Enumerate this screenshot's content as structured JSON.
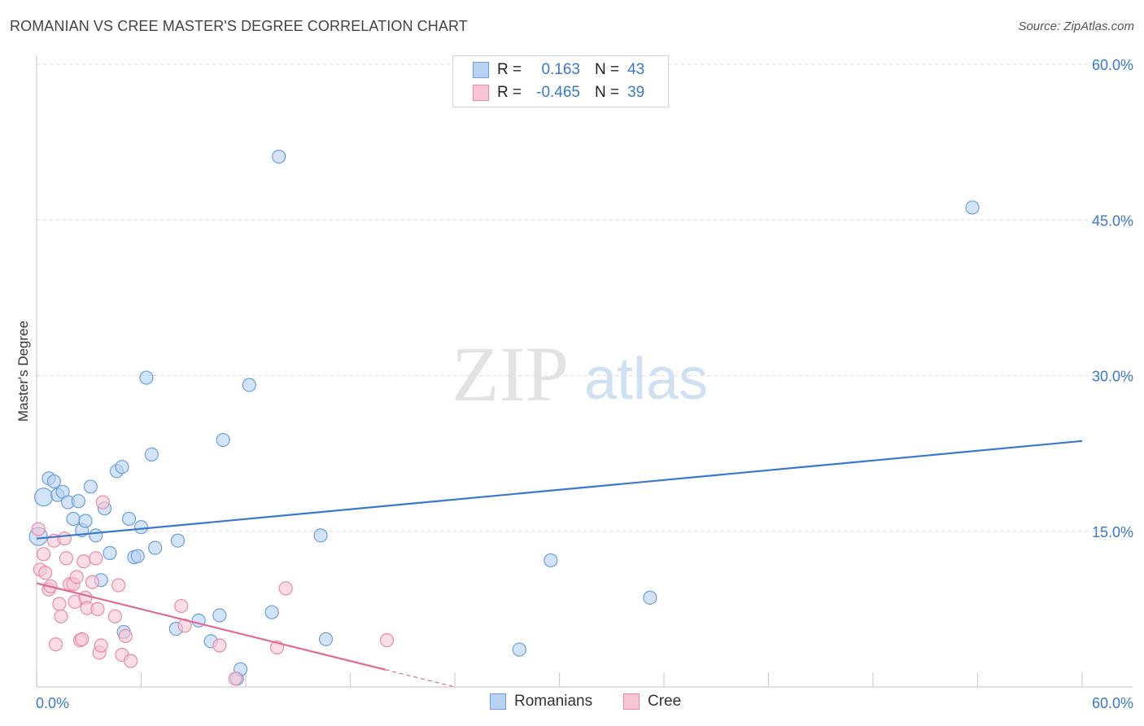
{
  "header": {
    "title": "ROMANIAN VS CREE MASTER'S DEGREE CORRELATION CHART",
    "source": "Source: ZipAtlas.com"
  },
  "watermark": {
    "part1": "ZIP",
    "part2": "atlas"
  },
  "legend": {
    "rows": [
      {
        "r_label": "R =",
        "r_value": "0.163",
        "n_label": "N =",
        "n_value": "43",
        "fill": "#b8d2f3",
        "stroke": "#6a9ee0"
      },
      {
        "r_label": "R =",
        "r_value": "-0.465",
        "n_label": "N =",
        "n_value": "39",
        "fill": "#f9c6d5",
        "stroke": "#e98aa8"
      }
    ]
  },
  "bottom_legend": {
    "items": [
      {
        "label": "Romanians",
        "fill": "#b8d2f3",
        "stroke": "#6a9ee0"
      },
      {
        "label": "Cree",
        "fill": "#f9c6d5",
        "stroke": "#e98aa8"
      }
    ]
  },
  "chart_data": {
    "type": "scatter",
    "title": "ROMANIAN VS CREE MASTER'S DEGREE CORRELATION CHART",
    "xlabel": "",
    "ylabel": "Master's Degree",
    "xlim": [
      0,
      60
    ],
    "ylim": [
      0,
      60
    ],
    "x_tick_labels": [
      "0.0%",
      "60.0%"
    ],
    "y_ticks": [
      {
        "value": 15,
        "label": "15.0%"
      },
      {
        "value": 30,
        "label": "30.0%"
      },
      {
        "value": 45,
        "label": "45.0%"
      },
      {
        "value": 60,
        "label": "60.0%"
      }
    ],
    "grid": true,
    "legend_position": "top-center",
    "colors": {
      "romanians": "#3a78d0",
      "cree": "#e06b94",
      "tick": "#3a78d0"
    },
    "series": [
      {
        "name": "Romanians",
        "fill": "#b8d2f3",
        "stroke": "#6a9ee0",
        "points": [
          {
            "x": 0.1,
            "y": 14.5,
            "big": true
          },
          {
            "x": 0.4,
            "y": 18.3,
            "big": true
          },
          {
            "x": 0.7,
            "y": 20.1
          },
          {
            "x": 1.0,
            "y": 19.8
          },
          {
            "x": 1.2,
            "y": 18.5
          },
          {
            "x": 1.5,
            "y": 18.8
          },
          {
            "x": 1.8,
            "y": 17.8
          },
          {
            "x": 2.1,
            "y": 16.2
          },
          {
            "x": 2.4,
            "y": 17.9
          },
          {
            "x": 2.6,
            "y": 15.1
          },
          {
            "x": 2.8,
            "y": 16.0
          },
          {
            "x": 3.1,
            "y": 19.3
          },
          {
            "x": 3.4,
            "y": 14.6
          },
          {
            "x": 3.7,
            "y": 10.3
          },
          {
            "x": 3.9,
            "y": 17.2
          },
          {
            "x": 4.2,
            "y": 12.9
          },
          {
            "x": 4.6,
            "y": 20.8
          },
          {
            "x": 4.9,
            "y": 21.2
          },
          {
            "x": 5.0,
            "y": 5.3
          },
          {
            "x": 5.3,
            "y": 16.2
          },
          {
            "x": 5.6,
            "y": 12.5
          },
          {
            "x": 5.8,
            "y": 12.6
          },
          {
            "x": 6.0,
            "y": 15.4
          },
          {
            "x": 6.3,
            "y": 29.8
          },
          {
            "x": 6.6,
            "y": 22.4
          },
          {
            "x": 6.8,
            "y": 13.4
          },
          {
            "x": 8.0,
            "y": 5.6
          },
          {
            "x": 8.1,
            "y": 14.1
          },
          {
            "x": 9.3,
            "y": 6.4
          },
          {
            "x": 10.0,
            "y": 4.4
          },
          {
            "x": 10.5,
            "y": 6.9
          },
          {
            "x": 10.7,
            "y": 23.8
          },
          {
            "x": 11.5,
            "y": 0.8
          },
          {
            "x": 11.7,
            "y": 1.7
          },
          {
            "x": 12.2,
            "y": 29.1
          },
          {
            "x": 13.5,
            "y": 7.2
          },
          {
            "x": 13.9,
            "y": 51.1
          },
          {
            "x": 16.3,
            "y": 14.6
          },
          {
            "x": 16.6,
            "y": 4.6
          },
          {
            "x": 27.7,
            "y": 3.6
          },
          {
            "x": 29.5,
            "y": 12.2
          },
          {
            "x": 35.2,
            "y": 8.6
          },
          {
            "x": 53.7,
            "y": 46.2
          }
        ]
      },
      {
        "name": "Cree",
        "fill": "#f9c6d5",
        "stroke": "#e98aa8",
        "points": [
          {
            "x": 0.1,
            "y": 15.2
          },
          {
            "x": 0.2,
            "y": 11.3
          },
          {
            "x": 0.4,
            "y": 12.8
          },
          {
            "x": 0.5,
            "y": 11.0
          },
          {
            "x": 0.7,
            "y": 9.4
          },
          {
            "x": 0.8,
            "y": 9.7
          },
          {
            "x": 1.0,
            "y": 14.1
          },
          {
            "x": 1.1,
            "y": 4.1
          },
          {
            "x": 1.3,
            "y": 8.0
          },
          {
            "x": 1.4,
            "y": 6.8
          },
          {
            "x": 1.6,
            "y": 14.3
          },
          {
            "x": 1.7,
            "y": 12.4
          },
          {
            "x": 1.9,
            "y": 9.9
          },
          {
            "x": 2.1,
            "y": 9.9
          },
          {
            "x": 2.2,
            "y": 8.2
          },
          {
            "x": 2.3,
            "y": 10.6
          },
          {
            "x": 2.5,
            "y": 4.5
          },
          {
            "x": 2.6,
            "y": 4.6
          },
          {
            "x": 2.7,
            "y": 12.1
          },
          {
            "x": 2.8,
            "y": 8.6
          },
          {
            "x": 2.9,
            "y": 7.6
          },
          {
            "x": 3.2,
            "y": 10.1
          },
          {
            "x": 3.4,
            "y": 12.4
          },
          {
            "x": 3.5,
            "y": 7.5
          },
          {
            "x": 3.6,
            "y": 3.3
          },
          {
            "x": 3.7,
            "y": 4.0
          },
          {
            "x": 3.8,
            "y": 17.8
          },
          {
            "x": 4.5,
            "y": 6.8
          },
          {
            "x": 4.7,
            "y": 9.8
          },
          {
            "x": 4.9,
            "y": 3.1
          },
          {
            "x": 5.1,
            "y": 4.9
          },
          {
            "x": 5.4,
            "y": 2.5
          },
          {
            "x": 8.3,
            "y": 7.8
          },
          {
            "x": 8.5,
            "y": 5.9
          },
          {
            "x": 10.5,
            "y": 4.0
          },
          {
            "x": 11.4,
            "y": 0.8
          },
          {
            "x": 13.8,
            "y": 3.8
          },
          {
            "x": 14.3,
            "y": 9.5
          },
          {
            "x": 20.1,
            "y": 4.5
          }
        ]
      }
    ],
    "trendlines": [
      {
        "series": "Romanians",
        "x": [
          0,
          60
        ],
        "y": [
          14.3,
          23.7
        ],
        "solid_to": 60
      },
      {
        "series": "Cree",
        "x": [
          0,
          24
        ],
        "y": [
          10.0,
          0.0
        ],
        "solid_to": 20
      }
    ]
  }
}
